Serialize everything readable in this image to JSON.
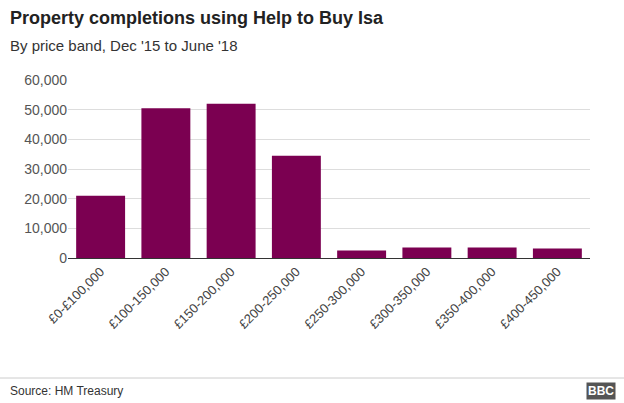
{
  "chart_data": {
    "type": "bar",
    "title": "Property completions using Help to Buy Isa",
    "subtitle": "By price band, Dec '15 to June '18",
    "source": "Source: HM Treasury",
    "logo": "BBC",
    "categories": [
      "£0-£100,000",
      "£100-150,000",
      "£150-200,000",
      "£200-250,000",
      "£250-300,000",
      "£300-350,000",
      "£350-400,000",
      "£400-450,000"
    ],
    "values": [
      21000,
      50500,
      52000,
      34500,
      2500,
      3500,
      3500,
      3200
    ],
    "color": "#7b0051",
    "ylim": [
      0,
      60000
    ],
    "yticks": [
      0,
      {
        "value": 10000,
        "label": "10,000"
      },
      {
        "value": 20000,
        "label": "20,000"
      },
      {
        "value": 30000,
        "label": "30,000"
      },
      {
        "value": 40000,
        "label": "40,000"
      },
      {
        "value": 50000,
        "label": "50,000"
      },
      {
        "value": 60000,
        "label": "60,000"
      }
    ],
    "grid": true
  }
}
